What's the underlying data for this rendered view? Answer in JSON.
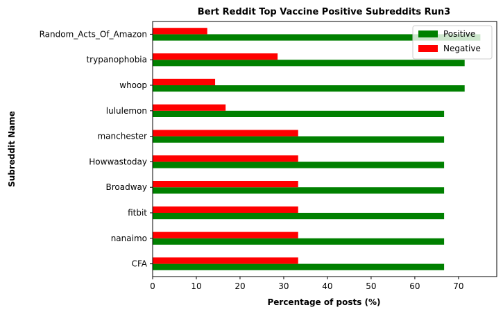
{
  "chart_data": {
    "type": "bar",
    "orientation": "horizontal",
    "title": "Bert Reddit Top Vaccine Positive Subreddits Run3",
    "xlabel": "Percentage of posts (%)",
    "ylabel": "Subreddit Name",
    "categories": [
      "CFA",
      "nanaimo",
      "fitbit",
      "Broadway",
      "Howwastoday",
      "manchester",
      "lululemon",
      "whoop",
      "trypanophobia",
      "Random_Acts_Of_Amazon"
    ],
    "series": [
      {
        "name": "Positive",
        "color": "#008000",
        "values": [
          66.7,
          66.7,
          66.7,
          66.7,
          66.7,
          66.7,
          66.7,
          71.4,
          71.4,
          75.0
        ]
      },
      {
        "name": "Negative",
        "color": "#ff0000",
        "values": [
          33.3,
          33.3,
          33.3,
          33.3,
          33.3,
          33.3,
          16.7,
          14.3,
          28.6,
          12.5
        ]
      }
    ],
    "xlim": [
      0,
      78.75
    ],
    "xticks": [
      0,
      10,
      20,
      30,
      40,
      50,
      60,
      70
    ],
    "grid": false,
    "legend_position": "top-right"
  }
}
